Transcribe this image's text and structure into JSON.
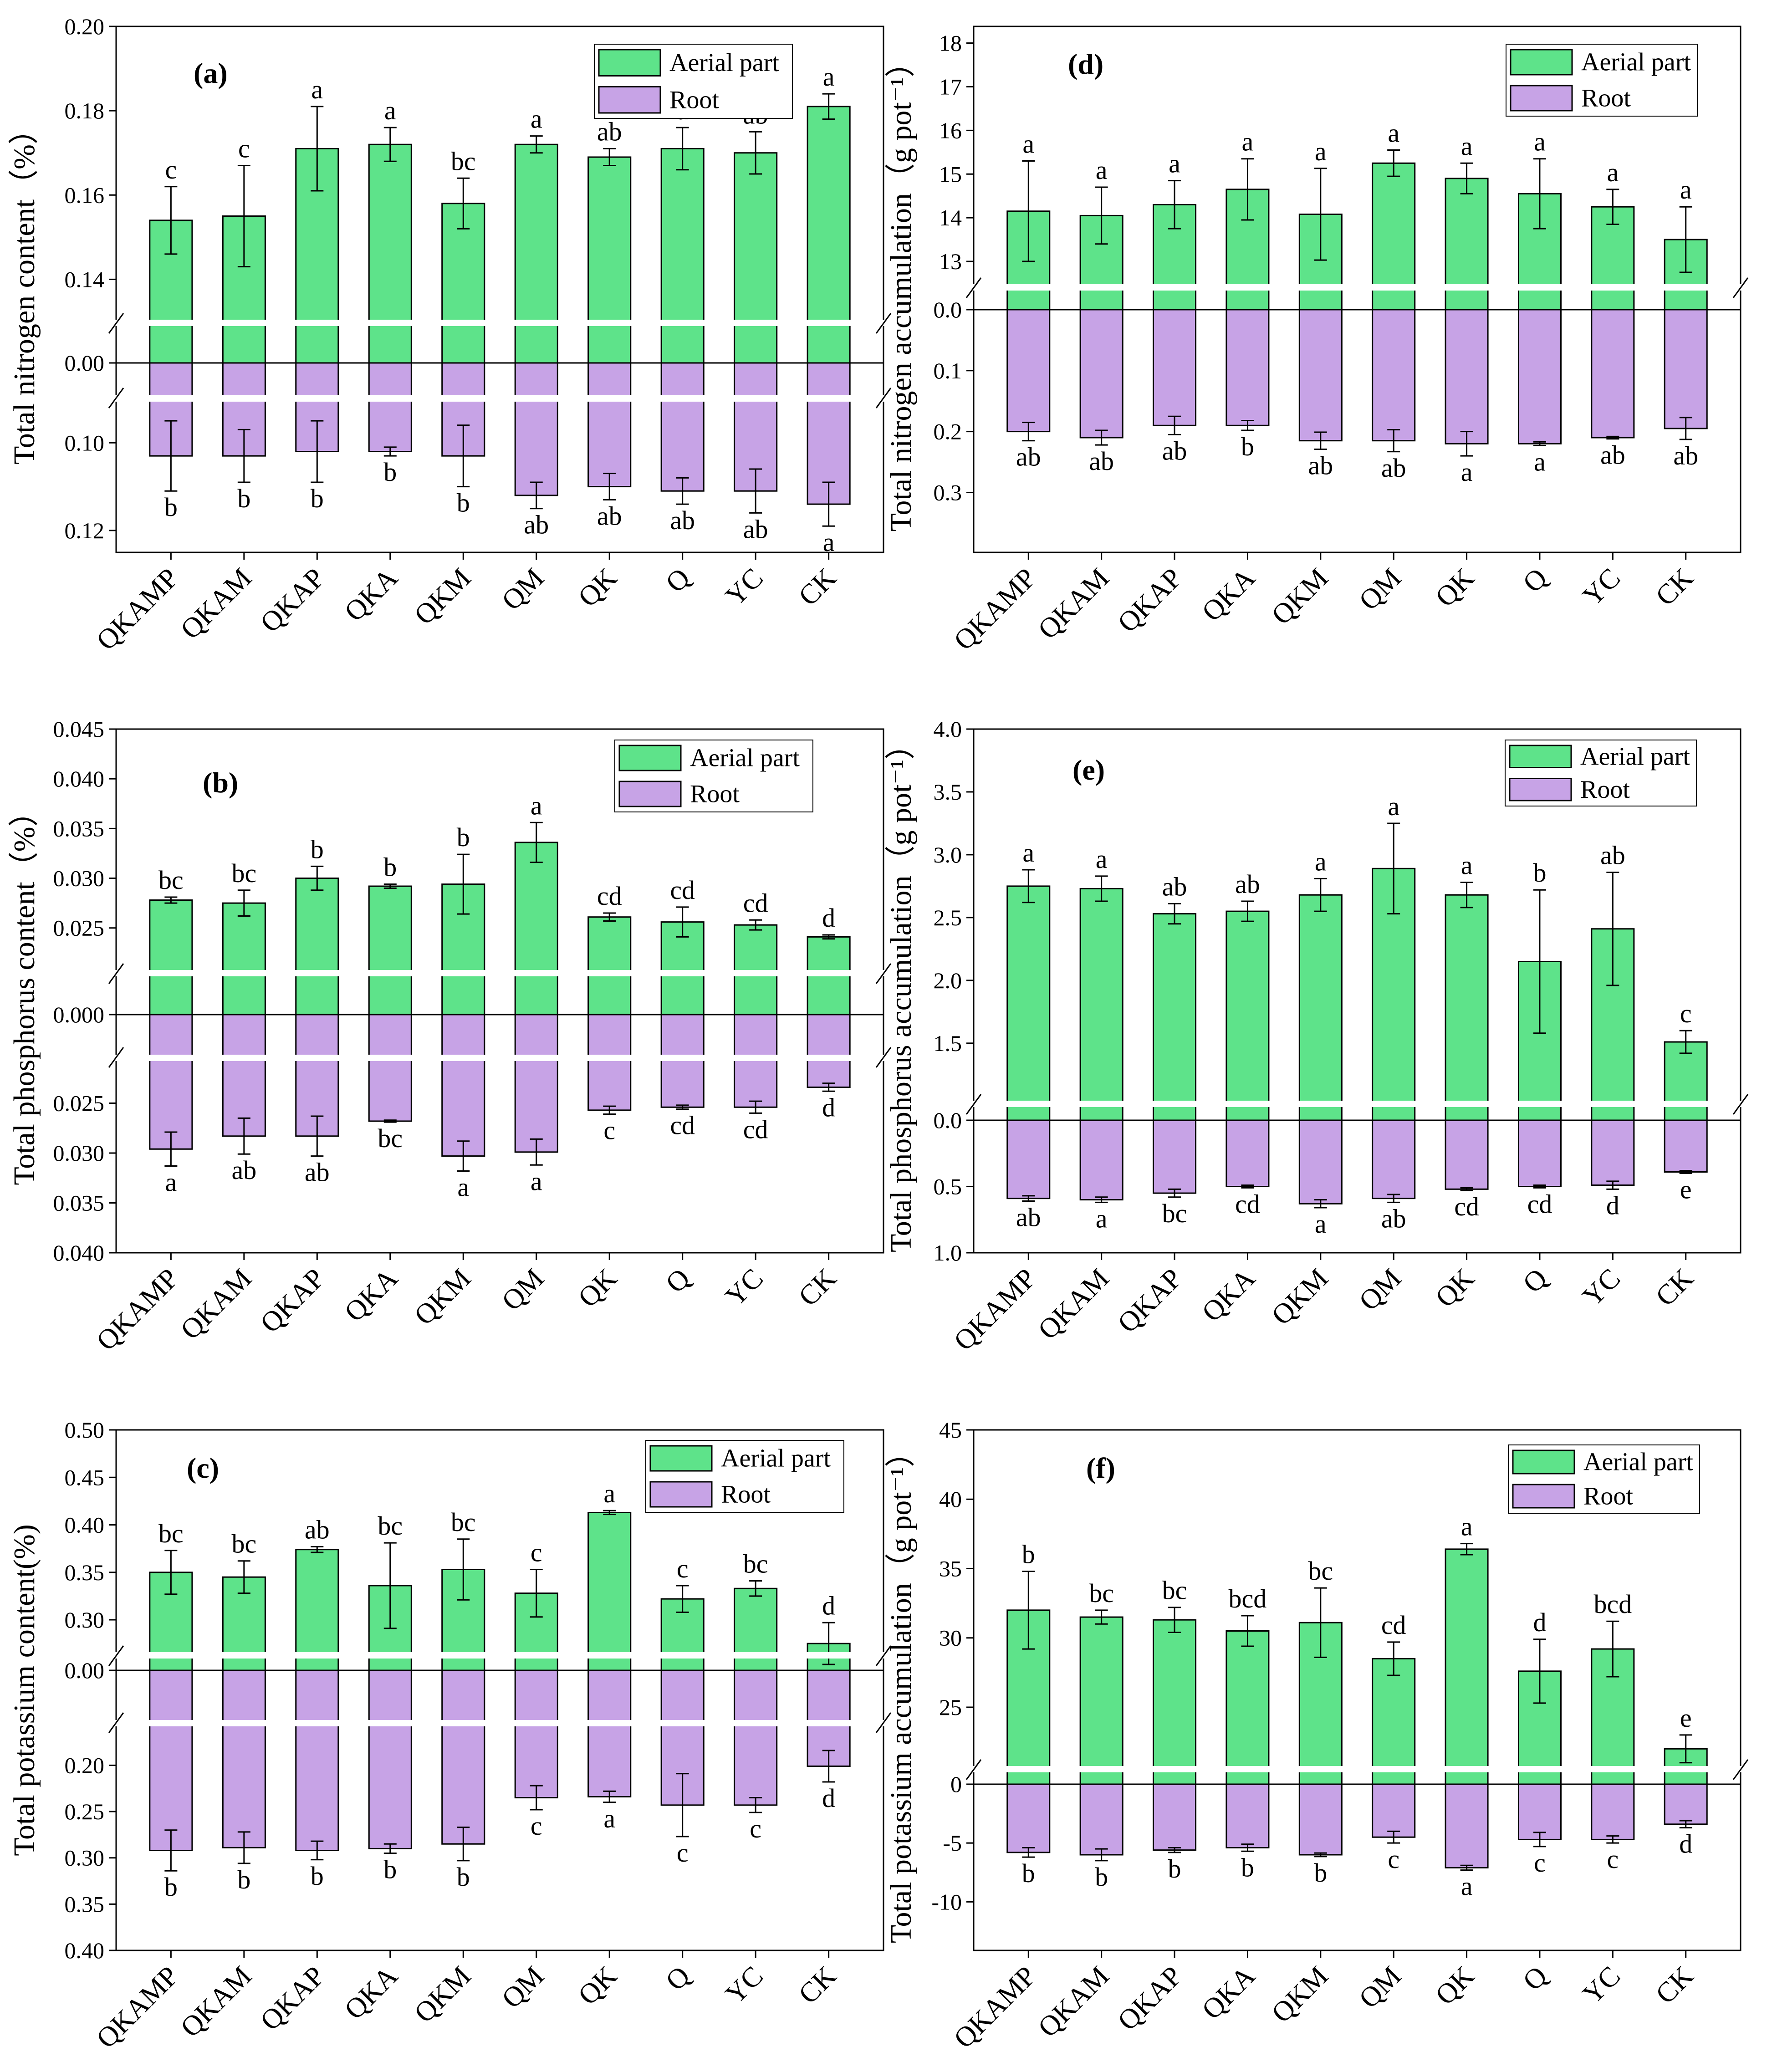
{
  "chart_data": [
    {
      "type": "bar",
      "panel": "(a)",
      "title": "(a)",
      "ylabel": "Total nitrogen content（%）",
      "categories": [
        "QKAMP",
        "QKAM",
        "QKAP",
        "QKA",
        "QKM",
        "QM",
        "QK",
        "Q",
        "YC",
        "CK"
      ],
      "legend": [
        "Aerial part",
        "Root"
      ],
      "colors": {
        "aerial": "#5ee38a",
        "root": "#c7a3e6"
      },
      "upper": {
        "ticks": [
          "0.14",
          "0.16",
          "0.18",
          "0.20"
        ],
        "range": [
          0.13,
          0.2
        ]
      },
      "zero_label": "0.00",
      "lower": {
        "ticks": [
          "0.10",
          "0.12"
        ],
        "range": [
          0.09,
          0.125
        ]
      },
      "series": [
        {
          "name": "Aerial part",
          "values": [
            0.154,
            0.155,
            0.171,
            0.172,
            0.158,
            0.172,
            0.169,
            0.171,
            0.17,
            0.181
          ],
          "errors": [
            0.008,
            0.012,
            0.01,
            0.004,
            0.006,
            0.002,
            0.002,
            0.005,
            0.005,
            0.003
          ],
          "letters": [
            "c",
            "c",
            "a",
            "a",
            "bc",
            "a",
            "ab",
            "a",
            "ab",
            "a"
          ]
        },
        {
          "name": "Root",
          "values": [
            0.103,
            0.103,
            0.102,
            0.102,
            0.103,
            0.112,
            0.11,
            0.111,
            0.111,
            0.114
          ],
          "errors": [
            0.008,
            0.006,
            0.007,
            0.001,
            0.007,
            0.003,
            0.003,
            0.003,
            0.005,
            0.005
          ],
          "letters": [
            "b",
            "b",
            "b",
            "b",
            "b",
            "ab",
            "ab",
            "ab",
            "ab",
            "a"
          ]
        }
      ]
    },
    {
      "type": "bar",
      "panel": "(d)",
      "title": "(d)",
      "ylabel": "Total nitrogen accumulation（g pot⁻¹）",
      "categories": [
        "QKAMP",
        "QKAM",
        "QKAP",
        "QKA",
        "QKM",
        "QM",
        "QK",
        "Q",
        "YC",
        "CK"
      ],
      "legend": [
        "Aerial part",
        "Root"
      ],
      "colors": {
        "aerial": "#5ee38a",
        "root": "#c7a3e6"
      },
      "upper": {
        "ticks": [
          "13",
          "14",
          "15",
          "16",
          "17",
          "18"
        ],
        "range": [
          12.5,
          18.1
        ]
      },
      "zero_label": "0.0",
      "lower": {
        "ticks": [
          "0.1",
          "0.2",
          "0.3"
        ],
        "range": [
          0.0,
          0.34
        ]
      },
      "series": [
        {
          "name": "Aerial part",
          "values": [
            14.15,
            14.05,
            14.3,
            14.65,
            14.08,
            15.25,
            14.9,
            14.55,
            14.25,
            13.5
          ],
          "errors": [
            1.15,
            0.65,
            0.55,
            0.7,
            1.05,
            0.3,
            0.35,
            0.8,
            0.4,
            0.75
          ],
          "letters": [
            "a",
            "a",
            "a",
            "a",
            "a",
            "a",
            "a",
            "a",
            "a",
            "a"
          ]
        },
        {
          "name": "Root",
          "values": [
            0.2,
            0.21,
            0.19,
            0.19,
            0.215,
            0.215,
            0.22,
            0.22,
            0.21,
            0.195
          ],
          "errors": [
            0.015,
            0.012,
            0.015,
            0.008,
            0.014,
            0.018,
            0.02,
            0.003,
            0.002,
            0.018
          ],
          "letters": [
            "ab",
            "ab",
            "ab",
            "b",
            "ab",
            "ab",
            "a",
            "a",
            "ab",
            "ab"
          ]
        }
      ]
    },
    {
      "type": "bar",
      "panel": "(b)",
      "title": "(b)",
      "ylabel": "Total phosphorus content（%）",
      "categories": [
        "QKAMP",
        "QKAM",
        "QKAP",
        "QKA",
        "QKM",
        "QM",
        "QK",
        "Q",
        "YC",
        "CK"
      ],
      "legend": [
        "Aerial part",
        "Root"
      ],
      "colors": {
        "aerial": "#5ee38a",
        "root": "#c7a3e6"
      },
      "upper": {
        "ticks": [
          "0.025",
          "0.030",
          "0.035",
          "0.040",
          "0.045"
        ],
        "range": [
          0.0205,
          0.045
        ]
      },
      "zero_label": "0.000",
      "lower": {
        "ticks": [
          "0.025",
          "0.030",
          "0.035",
          "0.040"
        ],
        "range": [
          0.0205,
          0.04
        ]
      },
      "series": [
        {
          "name": "Aerial part",
          "values": [
            0.0278,
            0.0275,
            0.03,
            0.0292,
            0.0294,
            0.0336,
            0.0261,
            0.0256,
            0.0253,
            0.0241
          ],
          "errors": [
            0.0003,
            0.0013,
            0.0012,
            0.0002,
            0.003,
            0.002,
            0.0004,
            0.0015,
            0.0005,
            0.0002
          ],
          "letters": [
            "bc",
            "bc",
            "b",
            "b",
            "b",
            "a",
            "cd",
            "cd",
            "cd",
            "d"
          ]
        },
        {
          "name": "Root",
          "values": [
            0.0296,
            0.0283,
            0.0283,
            0.0268,
            0.0303,
            0.0299,
            0.0257,
            0.0254,
            0.0254,
            0.0234
          ],
          "errors": [
            0.0017,
            0.0018,
            0.002,
            0.0001,
            0.0015,
            0.0013,
            0.0004,
            0.0002,
            0.0006,
            0.0004
          ],
          "letters": [
            "a",
            "ab",
            "ab",
            "bc",
            "a",
            "a",
            "c",
            "cd",
            "cd",
            "d"
          ]
        }
      ]
    },
    {
      "type": "bar",
      "panel": "(e)",
      "title": "(e)",
      "ylabel": "Total phosphorus accumulation（g pot⁻¹）",
      "categories": [
        "QKAMP",
        "QKAM",
        "QKAP",
        "QKA",
        "QKM",
        "QM",
        "QK",
        "Q",
        "YC",
        "CK"
      ],
      "legend": [
        "Aerial part",
        "Root"
      ],
      "colors": {
        "aerial": "#5ee38a",
        "root": "#c7a3e6"
      },
      "upper": {
        "ticks": [
          "1.5",
          "2.0",
          "2.5",
          "3.0",
          "3.5",
          "4.0"
        ],
        "range": [
          1.05,
          4.0
        ]
      },
      "zero_label": "0.0",
      "lower": {
        "ticks": [
          "0.5",
          "1.0"
        ],
        "range": [
          0.0,
          1.0
        ]
      },
      "series": [
        {
          "name": "Aerial part",
          "values": [
            2.75,
            2.73,
            2.53,
            2.55,
            2.68,
            2.89,
            2.68,
            2.15,
            2.41,
            1.51
          ],
          "errors": [
            0.13,
            0.1,
            0.08,
            0.08,
            0.13,
            0.36,
            0.1,
            0.57,
            0.45,
            0.09
          ],
          "letters": [
            "a",
            "a",
            "ab",
            "ab",
            "a",
            "a",
            "a",
            "b",
            "ab",
            "c"
          ]
        },
        {
          "name": "Root",
          "values": [
            0.59,
            0.6,
            0.55,
            0.5,
            0.63,
            0.59,
            0.52,
            0.5,
            0.49,
            0.39
          ],
          "errors": [
            0.02,
            0.02,
            0.03,
            0.01,
            0.03,
            0.03,
            0.01,
            0.01,
            0.03,
            0.01
          ],
          "letters": [
            "ab",
            "a",
            "bc",
            "cd",
            "a",
            "ab",
            "cd",
            "cd",
            "d",
            "e"
          ]
        }
      ]
    },
    {
      "type": "bar",
      "panel": "(c)",
      "title": "(c)",
      "ylabel": "Total potassium content(%)",
      "categories": [
        "QKAMP",
        "QKAM",
        "QKAP",
        "QKA",
        "QKM",
        "QM",
        "QK",
        "Q",
        "YC",
        "CK"
      ],
      "legend": [
        "Aerial part",
        "Root"
      ],
      "colors": {
        "aerial": "#5ee38a",
        "root": "#c7a3e6"
      },
      "upper": {
        "ticks": [
          "0.30",
          "0.35",
          "0.40",
          "0.45",
          "0.50"
        ],
        "range": [
          0.265,
          0.5
        ]
      },
      "zero_label": "0.00",
      "lower": {
        "ticks": [
          "0.20",
          "0.25",
          "0.30",
          "0.35",
          "0.40"
        ],
        "range": [
          0.155,
          0.4
        ]
      },
      "series": [
        {
          "name": "Aerial part",
          "values": [
            0.35,
            0.345,
            0.374,
            0.336,
            0.353,
            0.328,
            0.413,
            0.322,
            0.333,
            0.275
          ],
          "errors": [
            0.023,
            0.017,
            0.003,
            0.045,
            0.032,
            0.025,
            0.002,
            0.014,
            0.008,
            0.022
          ],
          "letters": [
            "bc",
            "bc",
            "ab",
            "bc",
            "bc",
            "c",
            "a",
            "c",
            "bc",
            "d"
          ]
        },
        {
          "name": "Root",
          "values": [
            0.292,
            0.289,
            0.292,
            0.29,
            0.285,
            0.235,
            0.234,
            0.243,
            0.243,
            0.201
          ],
          "errors": [
            0.022,
            0.017,
            0.01,
            0.005,
            0.018,
            0.013,
            0.006,
            0.034,
            0.008,
            0.017
          ],
          "letters": [
            "b",
            "b",
            "b",
            "b",
            "b",
            "c",
            "a",
            "c",
            "c",
            "d"
          ]
        }
      ]
    },
    {
      "type": "bar",
      "panel": "(f)",
      "title": "(f)",
      "ylabel": "Total potassium accumulation（g pot⁻¹）",
      "categories": [
        "QKAMP",
        "QKAM",
        "QKAP",
        "QKA",
        "QKM",
        "QM",
        "QK",
        "Q",
        "YC",
        "CK"
      ],
      "legend": [
        "Aerial part",
        "Root"
      ],
      "colors": {
        "aerial": "#5ee38a",
        "root": "#c7a3e6"
      },
      "upper": {
        "ticks": [
          "25",
          "30",
          "35",
          "40",
          "45"
        ],
        "range": [
          20.5,
          45
        ]
      },
      "zero_label": "0",
      "lower": {
        "ticks": [
          "-5",
          "-10"
        ],
        "range": [
          0,
          -12
        ]
      },
      "series": [
        {
          "name": "Aerial part",
          "values": [
            32.0,
            31.5,
            31.3,
            30.5,
            31.1,
            28.5,
            36.4,
            27.6,
            29.2,
            22.0
          ],
          "errors": [
            2.8,
            0.5,
            0.9,
            1.1,
            2.5,
            1.2,
            0.4,
            2.3,
            2.0,
            1.0
          ],
          "letters": [
            "b",
            "bc",
            "bc",
            "bcd",
            "bc",
            "cd",
            "a",
            "d",
            "bcd",
            "e"
          ]
        },
        {
          "name": "Root",
          "values": [
            -5.8,
            -6.0,
            -5.6,
            -5.4,
            -6.0,
            -4.5,
            -7.1,
            -4.7,
            -4.7,
            -3.4
          ],
          "errors": [
            0.4,
            0.5,
            0.2,
            0.3,
            0.15,
            0.5,
            0.2,
            0.6,
            0.3,
            0.3
          ],
          "letters": [
            "b",
            "b",
            "b",
            "b",
            "b",
            "c",
            "a",
            "c",
            "c",
            "d"
          ]
        }
      ]
    }
  ]
}
